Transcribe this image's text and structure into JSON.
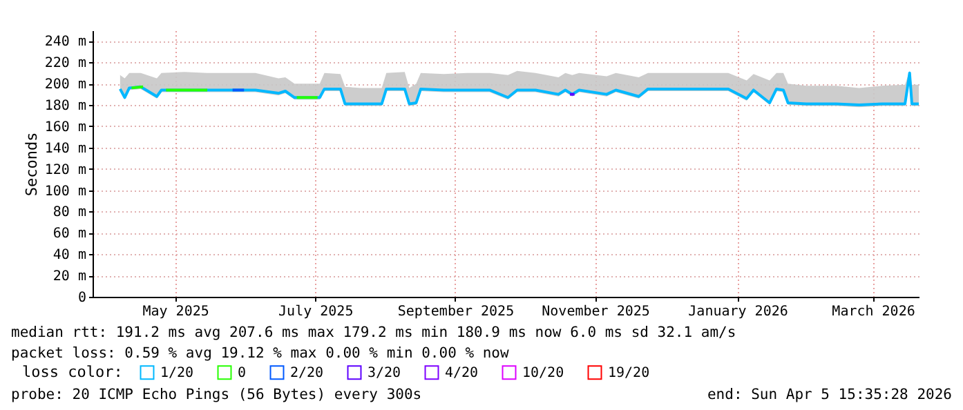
{
  "chart_data": {
    "type": "line",
    "ylabel": "Seconds",
    "x": [
      "2025-04-22",
      "2025-04-24",
      "2025-04-26",
      "2025-05-01",
      "2025-05-08",
      "2025-05-10",
      "2025-05-20",
      "2025-05-30",
      "2025-06-10",
      "2025-06-20",
      "2025-06-30",
      "2025-07-03",
      "2025-07-07",
      "2025-07-18",
      "2025-07-20",
      "2025-07-27",
      "2025-07-29",
      "2025-08-05",
      "2025-08-14",
      "2025-08-16",
      "2025-08-24",
      "2025-08-26",
      "2025-08-29",
      "2025-08-31",
      "2025-09-10",
      "2025-09-20",
      "2025-09-30",
      "2025-10-08",
      "2025-10-12",
      "2025-10-20",
      "2025-10-30",
      "2025-11-02",
      "2025-11-05",
      "2025-11-08",
      "2025-11-20",
      "2025-11-24",
      "2025-12-04",
      "2025-12-08",
      "2025-12-20",
      "2026-01-01",
      "2026-01-12",
      "2026-01-20",
      "2026-01-23",
      "2026-01-30",
      "2026-02-02",
      "2026-02-05",
      "2026-02-07",
      "2026-02-15",
      "2026-02-28",
      "2026-03-10",
      "2026-03-20",
      "2026-03-30",
      "2026-04-01",
      "2026-04-02",
      "2026-04-05"
    ],
    "series": [
      {
        "name": "1/20",
        "color": "#00b8ff",
        "values": [
          195,
          187,
          196,
          197,
          188,
          194,
          194,
          194,
          194,
          194,
          191,
          193,
          187,
          187,
          195,
          195,
          181,
          181,
          181,
          195,
          195,
          181,
          182,
          195,
          194,
          194,
          194,
          187,
          194,
          194,
          190,
          194,
          190,
          194,
          190,
          194,
          188,
          195,
          195,
          195,
          195,
          186,
          194,
          182,
          195,
          194,
          182,
          181,
          181,
          180,
          181,
          181,
          210,
          181,
          181
        ],
        "lower": [
          193,
          185,
          194,
          195,
          186,
          192,
          192,
          192,
          192,
          192,
          189,
          191,
          185,
          185,
          193,
          193,
          179,
          179,
          179,
          193,
          193,
          179,
          180,
          193,
          192,
          192,
          192,
          185,
          192,
          192,
          188,
          192,
          188,
          192,
          188,
          192,
          186,
          193,
          193,
          193,
          193,
          184,
          192,
          180,
          193,
          192,
          180,
          179,
          179,
          178,
          179,
          179,
          205,
          179,
          179
        ],
        "upper": [
          208,
          205,
          210,
          210,
          205,
          210,
          211,
          210,
          210,
          210,
          205,
          206,
          200,
          200,
          210,
          209,
          197,
          196,
          196,
          210,
          211,
          196,
          200,
          210,
          209,
          210,
          210,
          208,
          212,
          210,
          206,
          210,
          208,
          210,
          207,
          210,
          206,
          210,
          210,
          210,
          210,
          203,
          209,
          203,
          210,
          210,
          200,
          198,
          198,
          196,
          198,
          199,
          212,
          199,
          199
        ]
      },
      {
        "name": "0",
        "color": "#26ff00",
        "x": [
          "2025-04-27",
          "2025-05-02",
          "2025-05-05",
          "2025-05-12",
          "2025-05-30",
          "2025-06-02",
          "2025-07-08",
          "2025-07-17"
        ],
        "values": [
          196,
          197,
          null,
          194,
          194,
          null,
          187,
          187
        ]
      },
      {
        "name": "2/20",
        "color": "#0059ff",
        "x": [
          "2025-06-10",
          "2025-06-15"
        ],
        "values": [
          194,
          194
        ]
      },
      {
        "name": "3/20",
        "color": "#5e00ff",
        "x": [
          "2025-11-04",
          "2025-11-06"
        ],
        "values": [
          190,
          190
        ]
      },
      {
        "name": "4/20",
        "color": "#7e00ff",
        "values": [
          null,
          null,
          null,
          null,
          null,
          null,
          null,
          null,
          null,
          null,
          null,
          null,
          null,
          null,
          null,
          null,
          null,
          null,
          null,
          null,
          null,
          null,
          null,
          null,
          null,
          null,
          null,
          null,
          null,
          null,
          null,
          null,
          null,
          null,
          null,
          null,
          null,
          null,
          null,
          null,
          null,
          null,
          null,
          null,
          null,
          null,
          null,
          null,
          null,
          null,
          null,
          null,
          null,
          null,
          null
        ]
      },
      {
        "name": "10/20",
        "color": "#dd00ff",
        "values": [
          null,
          null,
          null,
          null,
          null,
          null,
          null,
          null,
          null,
          null,
          null,
          null,
          null,
          null,
          null,
          null,
          null,
          null,
          null,
          null,
          null,
          null,
          null,
          null,
          null,
          null,
          null,
          null,
          null,
          null,
          null,
          null,
          null,
          null,
          null,
          null,
          null,
          null,
          null,
          null,
          null,
          null,
          null,
          null,
          null,
          null,
          null,
          null,
          null,
          null,
          null,
          null,
          null,
          null,
          null
        ]
      },
      {
        "name": "19/20",
        "color": "#ff0000",
        "values": [
          null,
          null,
          null,
          null,
          null,
          null,
          null,
          null,
          null,
          null,
          null,
          null,
          null,
          null,
          null,
          null,
          null,
          null,
          null,
          null,
          null,
          null,
          null,
          null,
          null,
          null,
          null,
          null,
          null,
          null,
          null,
          null,
          null,
          null,
          null,
          null,
          null,
          null,
          null,
          null,
          null,
          null,
          null,
          null,
          null,
          null,
          null,
          null,
          null,
          null,
          null,
          null,
          null,
          null,
          null
        ]
      }
    ],
    "xlim": [
      "2025-04-10",
      "2026-04-05"
    ],
    "xticks": [
      {
        "value": "2025-05-16",
        "label": "May 2025"
      },
      {
        "value": "2025-07-16",
        "label": "July 2025"
      },
      {
        "value": "2025-09-15",
        "label": "September 2025"
      },
      {
        "value": "2025-11-15",
        "label": "November 2025"
      },
      {
        "value": "2026-01-16",
        "label": "January 2026"
      },
      {
        "value": "2026-03-16",
        "label": "March 2026"
      }
    ],
    "ylim": [
      0,
      250
    ],
    "yticks": [
      0,
      {
        "value": 20,
        "label": "20 m"
      },
      {
        "value": 40,
        "label": "40 m"
      },
      {
        "value": 60,
        "label": "60 m"
      },
      {
        "value": 80,
        "label": "80 m"
      },
      {
        "value": 100,
        "label": "100 m"
      },
      {
        "value": 120,
        "label": "120 m"
      },
      {
        "value": 140,
        "label": "140 m"
      },
      {
        "value": 160,
        "label": "160 m"
      },
      {
        "value": 180,
        "label": "180 m"
      },
      {
        "value": 200,
        "label": "200 m"
      },
      {
        "value": 220,
        "label": "220 m"
      },
      {
        "value": 240,
        "label": "240 m"
      }
    ],
    "grid": true,
    "legend": "bottom",
    "legend_title": "loss color:",
    "marker": "none",
    "line_style": "solid",
    "annotations": [
      "median rtt: 191.2 ms avg 207.6 ms max 179.2 ms min 180.9 ms now 6.0 ms sd 32.1 am/s",
      "packet loss: 0.59 % avg 19.12 % max 0.00 % min 0.00 % now",
      "probe: 20 ICMP Echo Pings (56 Bytes) every 300s",
      "end: Sun Apr 5 15:35:28 2026"
    ]
  }
}
